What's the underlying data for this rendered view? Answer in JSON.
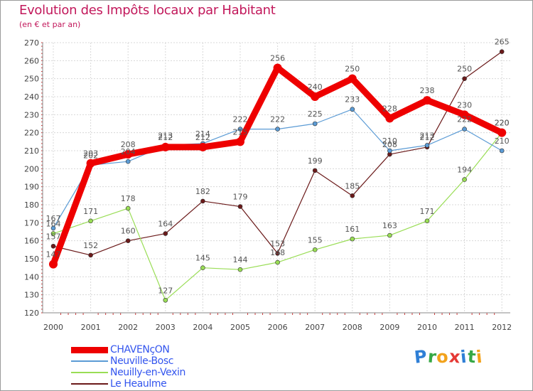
{
  "title": "Evolution des Impôts locaux par Habitant",
  "subtitle": "(en € et par an)",
  "logo": {
    "letters": [
      "P",
      "r",
      "o",
      "x",
      "i",
      "t",
      "i"
    ],
    "colors": [
      "#2f7fd6",
      "#37a845",
      "#f2a21b",
      "#e53935",
      "#2f7fd6",
      "#37a845",
      "#f2a21b"
    ]
  },
  "chart_data": {
    "type": "line",
    "title": "Evolution des Impôts locaux par Habitant",
    "ylabel": "(en € et par an)",
    "xlabel": "",
    "categories": [
      "2000",
      "2001",
      "2002",
      "2003",
      "2004",
      "2005",
      "2006",
      "2007",
      "2008",
      "2009",
      "2010",
      "2011",
      "2012"
    ],
    "ylim": [
      120,
      270
    ],
    "yticks": [
      120,
      130,
      140,
      150,
      160,
      170,
      180,
      190,
      200,
      210,
      220,
      230,
      240,
      250,
      260,
      270
    ],
    "grid": true,
    "legend": "bottom-left",
    "series": [
      {
        "name": "CHAVENçON",
        "color": "#ee0000",
        "values": [
          147,
          203,
          208,
          212,
          212,
          215,
          256,
          240,
          250,
          228,
          238,
          230,
          220
        ]
      },
      {
        "name": "Neuville-Bosc",
        "color": "#5b9bd5",
        "values": [
          167,
          202,
          204,
          213,
          214,
          222,
          222,
          225,
          233,
          210,
          213,
          222,
          210
        ]
      },
      {
        "name": "Neuilly-en-Vexin",
        "color": "#99dd55",
        "values": [
          164,
          171,
          178,
          127,
          145,
          144,
          148,
          155,
          161,
          163,
          171,
          194,
          220
        ]
      },
      {
        "name": "Le Heaulme",
        "color": "#6b1a1a",
        "values": [
          157,
          152,
          160,
          164,
          182,
          179,
          153,
          199,
          185,
          208,
          212,
          250,
          265
        ]
      }
    ]
  }
}
